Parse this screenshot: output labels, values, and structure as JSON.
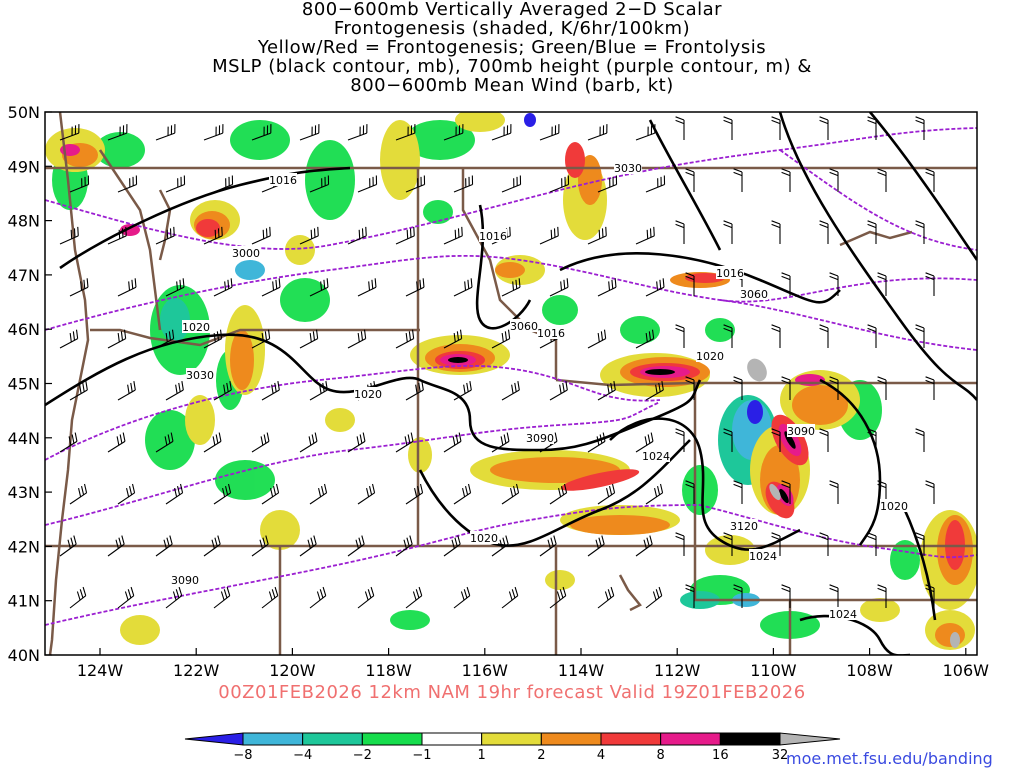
{
  "title_lines": [
    "800−600mb Vertically Averaged 2−D Scalar",
    "Frontogenesis (shaded, K/6hr/100km)",
    "Yellow/Red = Frontogenesis;  Green/Blue = Frontolysis",
    "MSLP (black contour, mb), 700mb height (purple contour, m) &",
    "800−600mb Mean Wind (barb, kt)"
  ],
  "valid_text": "00Z01FEB2026 12km NAM 19hr forecast Valid 19Z01FEB2026",
  "credit": "moe.met.fsu.edu/banding",
  "lat_labels": [
    "50N",
    "49N",
    "48N",
    "47N",
    "46N",
    "45N",
    "44N",
    "43N",
    "42N",
    "41N",
    "40N"
  ],
  "lon_labels": [
    "124W",
    "122W",
    "120W",
    "118W",
    "116W",
    "114W",
    "112W",
    "110W",
    "108W",
    "106W"
  ],
  "colorbar": {
    "labels": [
      "−8",
      "−4",
      "−2",
      "−1",
      "1",
      "2",
      "4",
      "8",
      "16",
      "32"
    ],
    "colors": [
      "#2a1fe6",
      "#3fb6d9",
      "#1ec79a",
      "#16dd4c",
      "#ffffff",
      "#e3dc3a",
      "#ee8a1d",
      "#f03a3a",
      "#e61b8a",
      "#000000",
      "#b4b4b4"
    ]
  },
  "mslp_labels": [
    "1016",
    "1016",
    "1016",
    "1016",
    "1020",
    "1020",
    "1020",
    "1020",
    "1020",
    "1024",
    "1024",
    "1024"
  ],
  "height_labels": [
    "3030",
    "3000",
    "3060",
    "3060",
    "3030",
    "3090",
    "3090",
    "3120",
    "3090"
  ],
  "colors": {
    "mslp": "#000000",
    "height": "#9b1fd1",
    "borders": "#7a5a48",
    "valid_text": "#f07070",
    "credit": "#3a4ae0"
  }
}
